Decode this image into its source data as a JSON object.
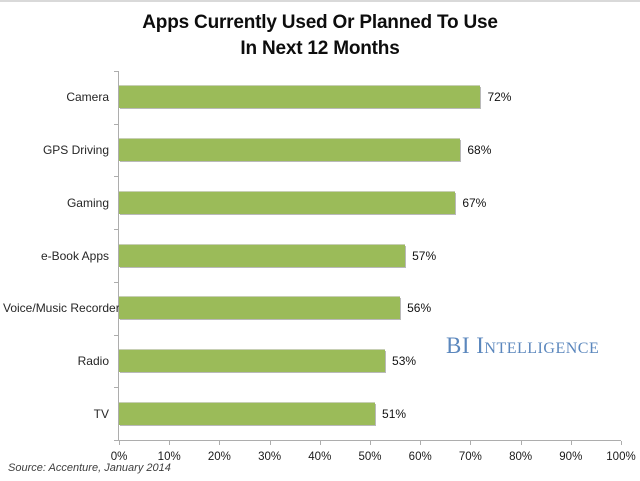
{
  "title_lines": [
    "Apps Currently Used Or Planned To Use",
    "In Next 12 Months"
  ],
  "branding": "BI Intelligence",
  "source": "Source: Accenture, January 2014",
  "theme": {
    "bar_color": "#9BBB59",
    "brand_color": "#5b87bd",
    "axis_color": "#adadad"
  },
  "chart_data": {
    "type": "bar",
    "orientation": "horizontal",
    "title": "Apps Currently Used Or Planned To Use In Next 12 Months",
    "categories": [
      "Camera",
      "GPS Driving",
      "Gaming",
      "e-Book Apps",
      "Voice/Music Recorder",
      "Radio",
      "TV"
    ],
    "values": [
      72,
      68,
      67,
      57,
      56,
      53,
      51
    ],
    "value_labels": [
      "72%",
      "68%",
      "67%",
      "57%",
      "56%",
      "53%",
      "51%"
    ],
    "x_ticks": [
      "0%",
      "10%",
      "20%",
      "30%",
      "40%",
      "50%",
      "60%",
      "70%",
      "80%",
      "90%",
      "100%"
    ],
    "xlim": [
      0,
      100
    ],
    "xlabel": "",
    "ylabel": "",
    "grid": false,
    "legend": null
  }
}
